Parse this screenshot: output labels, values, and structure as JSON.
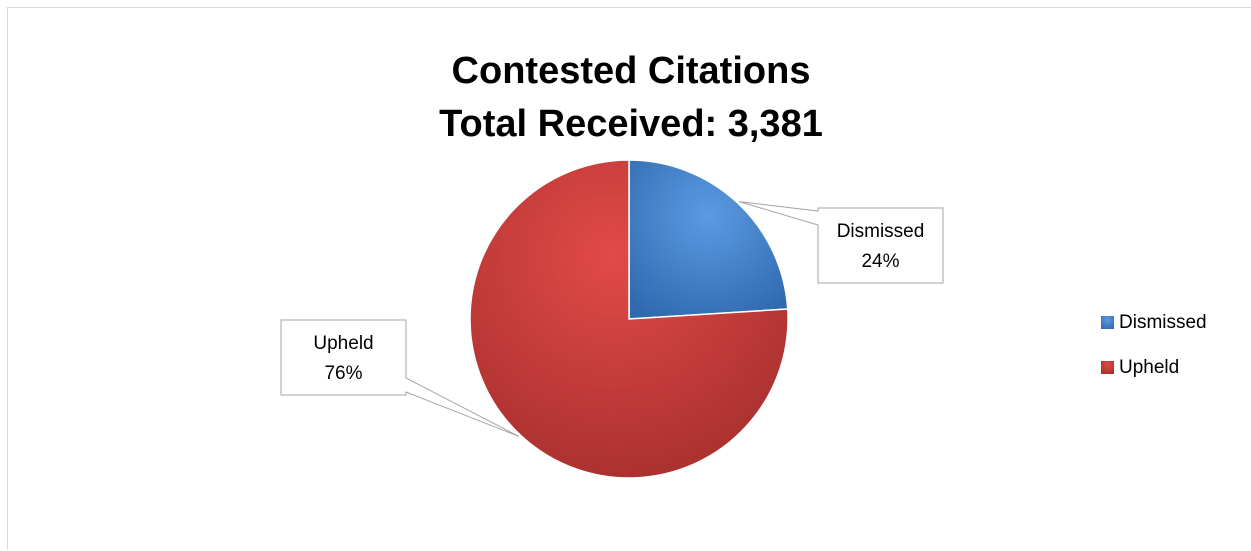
{
  "chart_data": {
    "type": "pie",
    "title": "Contested Citations",
    "subtitle": "Total Received: 3,381",
    "categories": [
      "Dismissed",
      "Upheld"
    ],
    "values": [
      24,
      76
    ],
    "value_unit": "%",
    "data_labels": [
      {
        "category": "Dismissed",
        "value_text": "24%"
      },
      {
        "category": "Upheld",
        "value_text": "76%"
      }
    ],
    "colors": [
      "#4a86d0",
      "#c83c3a"
    ],
    "legend": {
      "position": "right",
      "entries": [
        "Dismissed",
        "Upheld"
      ]
    }
  }
}
